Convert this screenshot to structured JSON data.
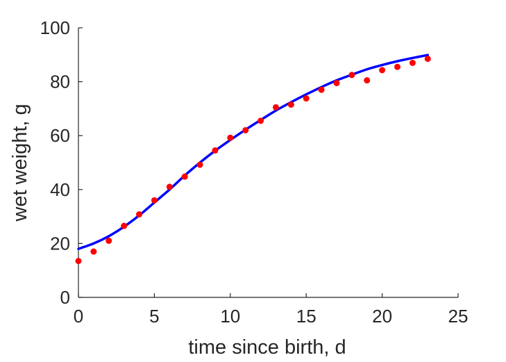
{
  "chart_data": {
    "type": "scatter",
    "title": "",
    "xlabel": "time since birth, d",
    "ylabel": "wet weight, g",
    "xlim": [
      0,
      25
    ],
    "ylim": [
      0,
      100
    ],
    "xticks": [
      "0",
      "5",
      "10",
      "15",
      "20",
      "25"
    ],
    "yticks": [
      "0",
      "20",
      "40",
      "60",
      "80",
      "100"
    ],
    "grid": false,
    "legend": "none",
    "series": [
      {
        "kind": "points",
        "color": "#ff0000",
        "x": [
          0,
          1,
          2,
          3,
          4,
          5,
          6,
          7,
          8,
          9,
          10,
          11,
          12,
          13,
          14,
          15,
          16,
          17,
          18,
          19,
          20,
          21,
          22,
          23
        ],
        "y": [
          13.5,
          17.0,
          21.0,
          26.5,
          30.8,
          36.0,
          41.0,
          44.8,
          49.2,
          54.5,
          59.2,
          62.0,
          65.5,
          70.5,
          71.5,
          73.8,
          77.0,
          79.5,
          82.5,
          80.5,
          84.3,
          85.5,
          87.0,
          88.5
        ]
      },
      {
        "kind": "line",
        "color": "#0000ff",
        "x": [
          0,
          1,
          2,
          3,
          4,
          5,
          6,
          7,
          8,
          9,
          10,
          11,
          12,
          13,
          14,
          15,
          16,
          17,
          18,
          19,
          20,
          21,
          22,
          23
        ],
        "y": [
          18.0,
          20.0,
          22.7,
          26.2,
          30.4,
          35.2,
          40.0,
          45.2,
          50.0,
          54.4,
          58.4,
          62.2,
          65.8,
          69.3,
          72.4,
          75.3,
          78.0,
          80.5,
          82.6,
          84.6,
          86.2,
          87.6,
          88.8,
          89.9
        ]
      }
    ]
  }
}
